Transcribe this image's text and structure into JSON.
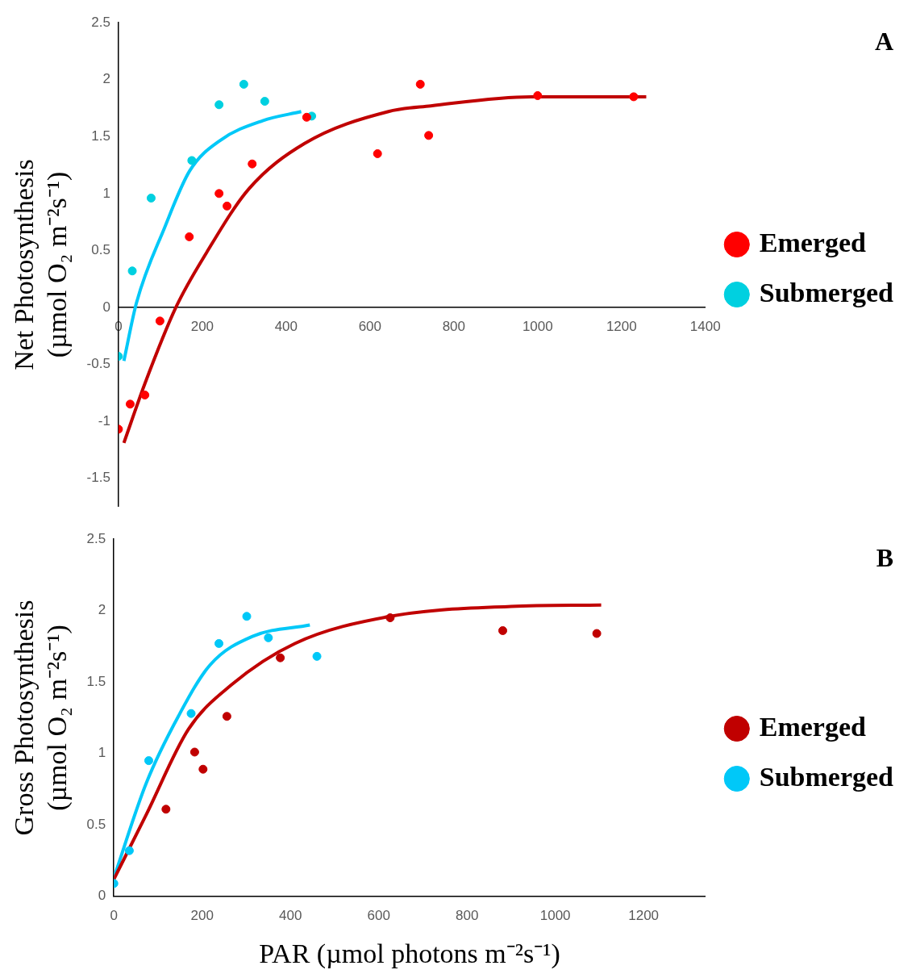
{
  "chart_data": [
    {
      "type": "scatter",
      "ylabel": "Net Photosynthesis\n(µmol O₂ m⁻²s⁻¹)",
      "annotations": [
        "A"
      ],
      "xlim": [
        0,
        1400
      ],
      "xticks": [
        0,
        200,
        400,
        600,
        800,
        1000,
        1200,
        1400
      ],
      "ylim": [
        -1.75,
        2.5
      ],
      "yticks": [
        -1.5,
        -1,
        -0.5,
        0,
        0.5,
        1,
        1.5,
        2,
        2.5
      ],
      "grid": false,
      "legend": "right",
      "marker": "circle",
      "series": [
        {
          "name": "Emerged",
          "color": "#ff0000",
          "x": [
            0,
            28,
            63,
            99,
            169,
            240,
            259,
            319,
            449,
            618,
            720,
            740,
            1000,
            1229
          ],
          "values": [
            -1.07,
            -0.85,
            -0.77,
            -0.12,
            0.62,
            1.0,
            0.89,
            1.26,
            1.67,
            1.35,
            1.96,
            1.51,
            1.86,
            1.85
          ]
        },
        {
          "name": "Submerged",
          "color": "#00d0e0",
          "x": [
            0,
            33,
            78,
            175,
            240,
            299,
            349,
            461
          ],
          "values": [
            -0.43,
            0.32,
            0.96,
            1.29,
            1.78,
            1.96,
            1.81,
            1.68
          ]
        },
        {
          "type": "line",
          "color": "#c00000",
          "marker": "none",
          "x": [
            13,
            63,
            137,
            210,
            311,
            444,
            644,
            745,
            985,
            1259
          ],
          "values": [
            -1.19,
            -0.67,
            0,
            0.48,
            1.04,
            1.44,
            1.72,
            1.77,
            1.85,
            1.85
          ]
        },
        {
          "type": "line",
          "color": "#00c8f8",
          "marker": "none",
          "x": [
            13,
            43,
            110,
            170,
            244,
            344,
            436
          ],
          "values": [
            -0.47,
            0.04,
            0.7,
            1.2,
            1.47,
            1.64,
            1.72
          ]
        }
      ]
    },
    {
      "type": "scatter",
      "xlabel": "PAR (µmol photons m⁻²s⁻¹)",
      "ylabel": "Gross Photosynthesis\n(µmol O₂ m⁻²s⁻¹)",
      "annotations": [
        "B"
      ],
      "xlim": [
        0,
        1340
      ],
      "xticks": [
        0,
        200,
        400,
        600,
        800,
        1000,
        1200
      ],
      "ylim": [
        0,
        2.5
      ],
      "yticks": [
        0,
        0.5,
        1,
        1.5,
        2,
        2.5
      ],
      "grid": false,
      "legend": "right",
      "marker": "circle",
      "series": [
        {
          "name": "Emerged",
          "color": "#c00000",
          "x": [
            118,
            183,
            202,
            256,
            377,
            626,
            881,
            1094
          ],
          "values": [
            0.61,
            1.01,
            0.89,
            1.26,
            1.67,
            1.95,
            1.86,
            1.84
          ]
        },
        {
          "name": "Submerged",
          "color": "#00c8f8",
          "x": [
            0,
            35,
            79,
            175,
            238,
            301,
            350,
            460
          ],
          "values": [
            0.09,
            0.32,
            0.95,
            1.28,
            1.77,
            1.96,
            1.81,
            1.68
          ]
        },
        {
          "type": "line",
          "color": "#c00000",
          "marker": "none",
          "x": [
            0,
            73,
            169,
            266,
            410,
            626,
            900,
            1104
          ],
          "values": [
            0.12,
            0.57,
            1.17,
            1.48,
            1.77,
            1.96,
            2.03,
            2.04
          ]
        },
        {
          "type": "line",
          "color": "#00c8f8",
          "marker": "none",
          "x": [
            0,
            73,
            146,
            218,
            314,
            444
          ],
          "values": [
            0.13,
            0.79,
            1.26,
            1.62,
            1.82,
            1.9
          ]
        }
      ]
    }
  ]
}
